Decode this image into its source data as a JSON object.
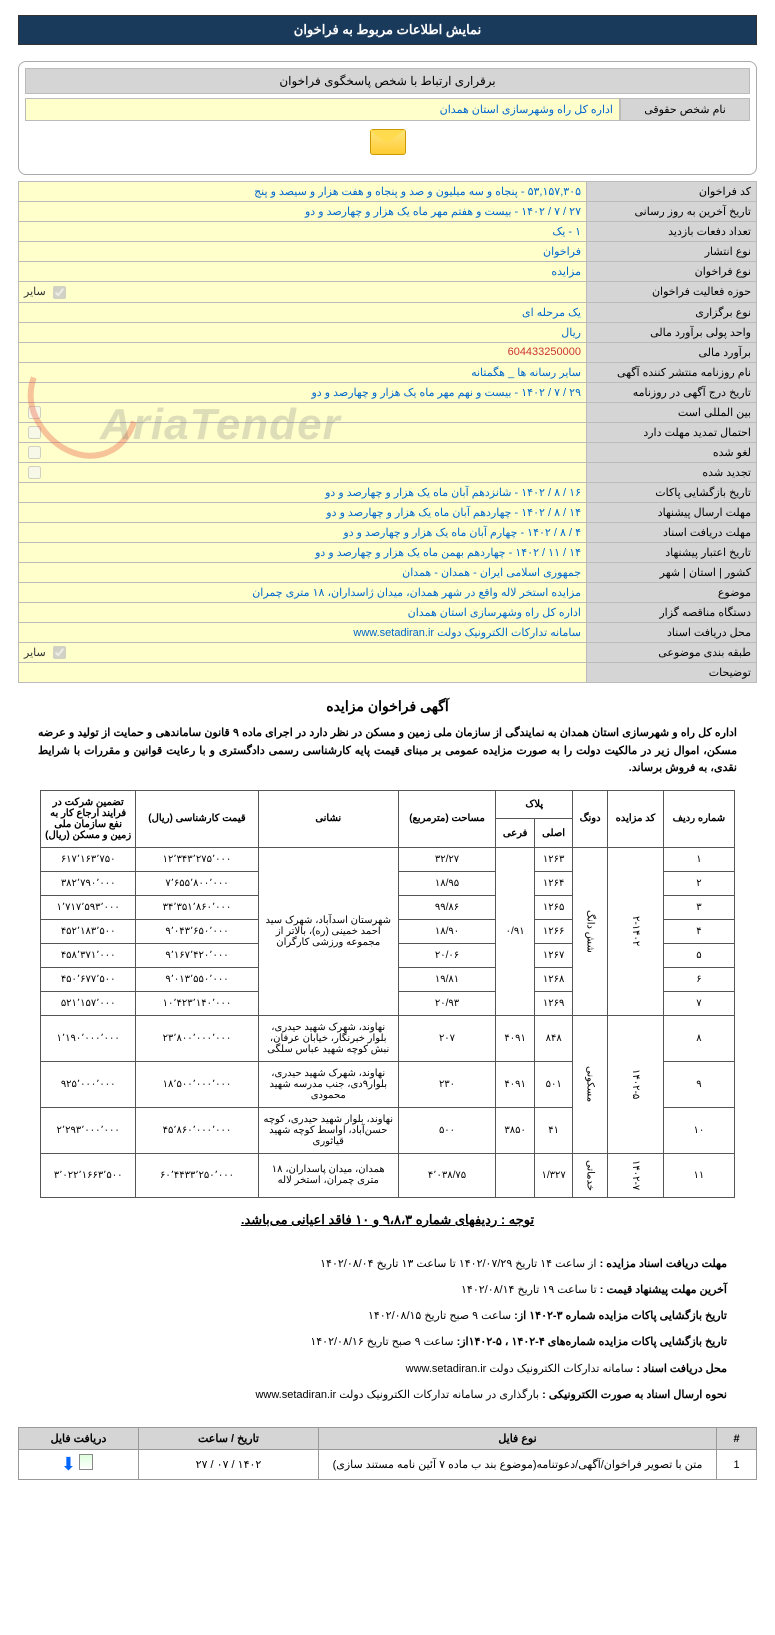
{
  "header": {
    "title": "نمایش اطلاعات مربوط به فراخوان"
  },
  "contact": {
    "header_label": "برقراری ارتباط با شخص پاسخگوی فراخوان",
    "legal_name_label": "نام شخص حقوقی",
    "legal_name_value": "اداره کل راه وشهرسازی استان همدان"
  },
  "fields": [
    {
      "label": "کد فراخوان",
      "value": "۵۳,۱۵۷,۳۰۵ - پنجاه و سه میلیون و صد و پنجاه و هفت هزار و سیصد و پنج",
      "type": "text"
    },
    {
      "label": "تاریخ آخرین به روز رسانی",
      "value": "۲۷ / ۷ / ۱۴۰۲ - بیست و هفتم مهر ماه یک هزار و چهارصد و دو",
      "type": "text"
    },
    {
      "label": "تعداد دفعات بازدید",
      "value": "۱ - یک",
      "type": "text"
    },
    {
      "label": "نوع انتشار",
      "value": "فراخوان",
      "type": "text"
    },
    {
      "label": "نوع فراخوان",
      "value": "مزایده",
      "type": "text"
    },
    {
      "label": "حوزه فعالیت فراخوان",
      "value": "سایر",
      "type": "checkbox",
      "checked": true
    },
    {
      "label": "نوع برگزاری",
      "value": "یک مرحله ای",
      "type": "text"
    },
    {
      "label": "واحد پولی برآورد مالی",
      "value": "ریال",
      "type": "text"
    },
    {
      "label": "برآورد مالی",
      "value": "604433250000",
      "type": "text",
      "color": "#cc3333"
    },
    {
      "label": "نام روزنامه منتشر کننده آگهی",
      "value": "سایر رسانه ها _ هگمتانه",
      "type": "text"
    },
    {
      "label": "تاریخ درج آگهی در روزنامه",
      "value": "۲۹ / ۷ / ۱۴۰۲ - بیست و نهم مهر ماه یک هزار و چهارصد و دو",
      "type": "text"
    },
    {
      "label": "بین المللی است",
      "value": "",
      "type": "checkbox",
      "checked": false
    },
    {
      "label": "احتمال تمدید مهلت دارد",
      "value": "",
      "type": "checkbox",
      "checked": false
    },
    {
      "label": "لغو شده",
      "value": "",
      "type": "checkbox",
      "checked": false
    },
    {
      "label": "تجدید شده",
      "value": "",
      "type": "checkbox",
      "checked": false
    },
    {
      "label": "تاریخ بازگشایی پاکات",
      "value": "۱۶ / ۸ / ۱۴۰۲ - شانزدهم آبان ماه یک هزار و چهارصد و دو",
      "type": "text"
    },
    {
      "label": "مهلت ارسال پیشنهاد",
      "value": "۱۴ / ۸ / ۱۴۰۲ - چهاردهم آبان ماه یک هزار و چهارصد و دو",
      "type": "text"
    },
    {
      "label": "مهلت دریافت اسناد",
      "value": "۴ / ۸ / ۱۴۰۲ - چهارم آبان ماه یک هزار و چهارصد و دو",
      "type": "text"
    },
    {
      "label": "تاریخ اعتبار پیشنهاد",
      "value": "۱۴ / ۱۱ / ۱۴۰۲ - چهاردهم بهمن ماه یک هزار و چهارصد و دو",
      "type": "text"
    },
    {
      "label": "کشور | استان | شهر",
      "value": "جمهوری اسلامی ایران - همدان - همدان",
      "type": "text"
    },
    {
      "label": "موضوع",
      "value": "مزایده استخر لاله واقع در شهر همدان، میدان ژاسداران، ۱۸ متری چمران",
      "type": "text"
    },
    {
      "label": "دستگاه مناقصه گزار",
      "value": "اداره کل راه وشهرسازی استان همدان",
      "type": "text"
    },
    {
      "label": "محل دریافت اسناد",
      "value": "سامانه تدارکات الکترونیک دولت www.setadiran.ir",
      "type": "text"
    },
    {
      "label": "طبقه بندی موضوعی",
      "value": "سایر",
      "type": "checkbox",
      "checked": true
    },
    {
      "label": "توضیحات",
      "value": "",
      "type": "text"
    }
  ],
  "notice": {
    "title": "آگهی فراخوان مزایده",
    "intro": "اداره کل راه و شهرسازی استان همدان به نمایندگی از سازمان ملی زمین و مسکن در نظر دارد در اجرای ماده ۹ قانون ساماندهی و حمایت از تولید و عرضه مسکن، اموال زیر در مالکیت دولت را به صورت مزایده عمومی بر مبنای قیمت پایه کارشناسی رسمی دادگستری و با رعایت قوانین و مقررات با شرایط نقدی، به فروش برساند."
  },
  "data_table": {
    "headers": {
      "row": "شماره ردیف",
      "auction": "کد مزایده",
      "dong": "دونگ",
      "plak_main": "اصلی",
      "plak_sub": "فرعی",
      "plak": "پلاک",
      "area": "مساحت (مترمربع)",
      "address": "نشانی",
      "price": "قیمت کارشناسی (ریال)",
      "deposit": "تضمین شرکت در فرایند ارجاع کار به نفع سازمان ملی زمین و مسکن (ریال)"
    },
    "rows": [
      {
        "row": "۱",
        "dong": "",
        "main": "۱۲۶۳",
        "sub": "",
        "area": "۳۲/۲۷",
        "addr": "",
        "price": "۱۲٬۳۴۳٬۲۷۵٬۰۰۰",
        "deposit": "۶۱۷٬۱۶۳٬۷۵۰"
      },
      {
        "row": "۲",
        "dong": "",
        "main": "۱۲۶۴",
        "sub": "",
        "area": "۱۸/۹۵",
        "addr": "",
        "price": "۷٬۶۵۵٬۸۰۰٬۰۰۰",
        "deposit": "۳۸۲٬۷۹۰٬۰۰۰"
      },
      {
        "row": "۳",
        "dong": "",
        "main": "۱۲۶۵",
        "sub": "",
        "area": "۹۹/۸۶",
        "addr": "",
        "price": "۳۴٬۳۵۱٬۸۶۰٬۰۰۰",
        "deposit": "۱٬۷۱۷٬۵۹۳٬۰۰۰"
      },
      {
        "row": "۴",
        "dong": "",
        "main": "۱۲۶۶",
        "sub": "۰/۹۱",
        "area": "۱۸/۹۰",
        "addr": "شهرستان اسدآباد، شهرک سید احمد خمینی (ره)، بالاتر از مجموعه ورزشی کارگران",
        "price": "۹٬۰۴۳٬۶۵۰٬۰۰۰",
        "deposit": "۴۵۲٬۱۸۳٬۵۰۰"
      },
      {
        "row": "۵",
        "dong": "",
        "main": "۱۲۶۷",
        "sub": "",
        "area": "۲۰/۰۶",
        "addr": "",
        "price": "۹٬۱۶۷٬۴۲۰٬۰۰۰",
        "deposit": "۴۵۸٬۳۷۱٬۰۰۰"
      },
      {
        "row": "۶",
        "dong": "",
        "main": "۱۲۶۸",
        "sub": "",
        "area": "۱۹/۸۱",
        "addr": "",
        "price": "۹٬۰۱۳٬۵۵۰٬۰۰۰",
        "deposit": "۴۵۰٬۶۷۷٬۵۰۰"
      },
      {
        "row": "۷",
        "dong": "",
        "main": "۱۲۶۹",
        "sub": "",
        "area": "۲۰/۹۳",
        "addr": "",
        "price": "۱۰٬۴۲۳٬۱۴۰٬۰۰۰",
        "deposit": "۵۲۱٬۱۵۷٬۰۰۰"
      },
      {
        "row": "۸",
        "dong": "",
        "main": "۸۴۸",
        "sub": "۴۰۹۱",
        "area": "۲۰۷",
        "addr": "نهاوند، شهرک شهید حیدری، بلوار خبرنگار، خیابان عرفان، نبش کوچه شهید عباس سلگی",
        "price": "۲۳٬۸۰۰٬۰۰۰٬۰۰۰",
        "deposit": "۱٬۱۹۰٬۰۰۰٬۰۰۰"
      },
      {
        "row": "۹",
        "dong": "",
        "main": "۵۰۱",
        "sub": "۴۰۹۱",
        "area": "۲۳۰",
        "addr": "نهاوند، شهرک شهید حیدری، بلوار۹دی، جنب مدرسه شهید محمودی",
        "price": "۱۸٬۵۰۰٬۰۰۰٬۰۰۰",
        "deposit": "۹۲۵٬۰۰۰٬۰۰۰"
      },
      {
        "row": "۱۰",
        "dong": "",
        "main": "۴۱",
        "sub": "۳۸۵۰",
        "area": "۵۰۰",
        "addr": "نهاوند، بلوار شهید حیدری، کوچه حسن‌آباد، اواسط کوچه شهید قیاثوری",
        "price": "۴۵٬۸۶۰٬۰۰۰٬۰۰۰",
        "deposit": "۲٬۲۹۳٬۰۰۰٬۰۰۰"
      },
      {
        "row": "۱۱",
        "dong": "",
        "main": "۱/۳۲۷",
        "sub": "",
        "area": "۴٬۰۳۸/۷۵",
        "addr": "همدان، میدان پاسداران، ۱۸ متری چمران، استخر لاله",
        "price": "۶۰٬۴۴۳۳٬۲۵۰٬۰۰۰",
        "deposit": "۳٬۰۲۲٬۱۶۶۳٬۵۰۰"
      }
    ],
    "auction_codes": [
      "۲-۱۴۰۲",
      "۱۴۰۲-۵",
      "۱۴۰۲-۷"
    ],
    "dong_labels": [
      "شش دانگ",
      "مسکونی",
      "خدماتی"
    ]
  },
  "note": "توجه : ردیفهای شماره ۹،۸،۳ و ۱۰ فاقد اعیانی می‌باشد.",
  "deadlines": {
    "l1_b": "مهلت دریافت اسناد مزایده :",
    "l1": "از ساعت ۱۴ تاریخ ۱۴۰۲/۰۷/۲۹ تا ساعت ۱۳ تاریخ ۱۴۰۲/۰۸/۰۴",
    "l2_b": "آخرین مهلت پیشنهاد قیمت :",
    "l2": "تا ساعت ۱۹ تاریخ ۱۴۰۲/۰۸/۱۴",
    "l3_b": "تاریخ بازگشایی پاکات مزایده شماره ۳-۱۴۰۲ از:",
    "l3": "ساعت ۹ صبح تاریخ ۱۴۰۲/۰۸/۱۵",
    "l4_b": "تاریخ بازگشایی پاکات مزایده شماره‌های ۴-۱۴۰۲ ، ۵-۱۴۰۲از:",
    "l4": "ساعت ۹ صبح تاریخ ۱۴۰۲/۰۸/۱۶",
    "l5_b": "محل دریافت اسناد :",
    "l5": "سامانه تدارکات الکترونیک دولت www.setadiran.ir",
    "l6_b": "نحوه ارسال اسناد به صورت الکترونیکی :",
    "l6": "بارگذاری در سامانه تدارکات الکترونیک دولت www.setadiran.ir"
  },
  "file_table": {
    "h_num": "#",
    "h_type": "نوع فایل",
    "h_date": "تاریخ / ساعت",
    "h_dl": "دریافت فایل",
    "row_num": "1",
    "row_type": "متن با تصویر فراخوان/آگهی/دعوتنامه(موضوع بند ب ماده ۷ آئین نامه مستند سازی)",
    "row_date": "۱۴۰۲ / ۰۷ / ۲۷"
  },
  "watermark": "AriaTender"
}
